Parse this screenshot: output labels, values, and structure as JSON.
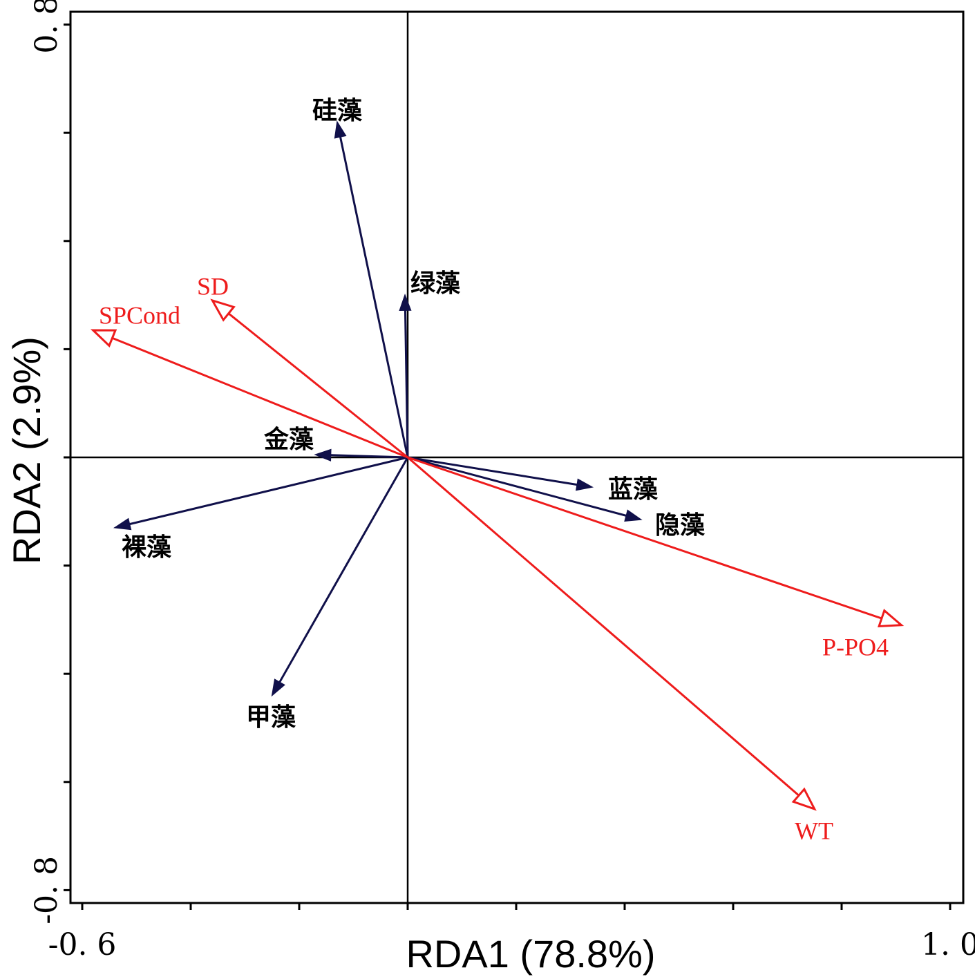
{
  "chart_data": {
    "type": "biplot",
    "title": "",
    "xlabel": "RDA1 (78.8%)",
    "ylabel": "RDA2 (2.9%)",
    "xlim": [
      -0.6,
      1.0
    ],
    "ylim": [
      -0.8,
      0.8
    ],
    "x_tick_labels": [
      {
        "value": -0.6,
        "label": "-0. 6"
      },
      {
        "value": 1.0,
        "label": "1. 0"
      }
    ],
    "y_tick_labels": [
      {
        "value": 0.8,
        "label": "0. 8"
      },
      {
        "value": -0.8,
        "label": "-0. 8"
      }
    ],
    "x_minor_ticks": [
      -0.6,
      -0.4,
      -0.2,
      0.0,
      0.2,
      0.4,
      0.6,
      0.8,
      1.0
    ],
    "y_minor_ticks": [
      0.8,
      0.6,
      0.4,
      0.2,
      0.0,
      -0.2,
      -0.4,
      -0.6,
      -0.8
    ],
    "colors": {
      "environment": "#ee1c1c",
      "species": "#10104a",
      "axis": "#000000"
    },
    "environmental_vectors": [
      {
        "name": "SPCond",
        "x": -0.58,
        "y": 0.235
      },
      {
        "name": "SD",
        "x": -0.36,
        "y": 0.29
      },
      {
        "name": "P-PO4",
        "x": 0.91,
        "y": -0.31
      },
      {
        "name": "WT",
        "x": 0.75,
        "y": -0.65
      }
    ],
    "species_vectors": [
      {
        "name": "硅藻",
        "x": -0.13,
        "y": 0.62
      },
      {
        "name": "绿藻",
        "x": -0.005,
        "y": 0.3
      },
      {
        "name": "金藻",
        "x": -0.17,
        "y": 0.005
      },
      {
        "name": "蓝藻",
        "x": 0.34,
        "y": -0.055
      },
      {
        "name": "隐藻",
        "x": 0.43,
        "y": -0.115
      },
      {
        "name": "裸藻",
        "x": -0.54,
        "y": -0.13
      },
      {
        "name": "甲藻",
        "x": -0.25,
        "y": -0.44
      }
    ]
  }
}
